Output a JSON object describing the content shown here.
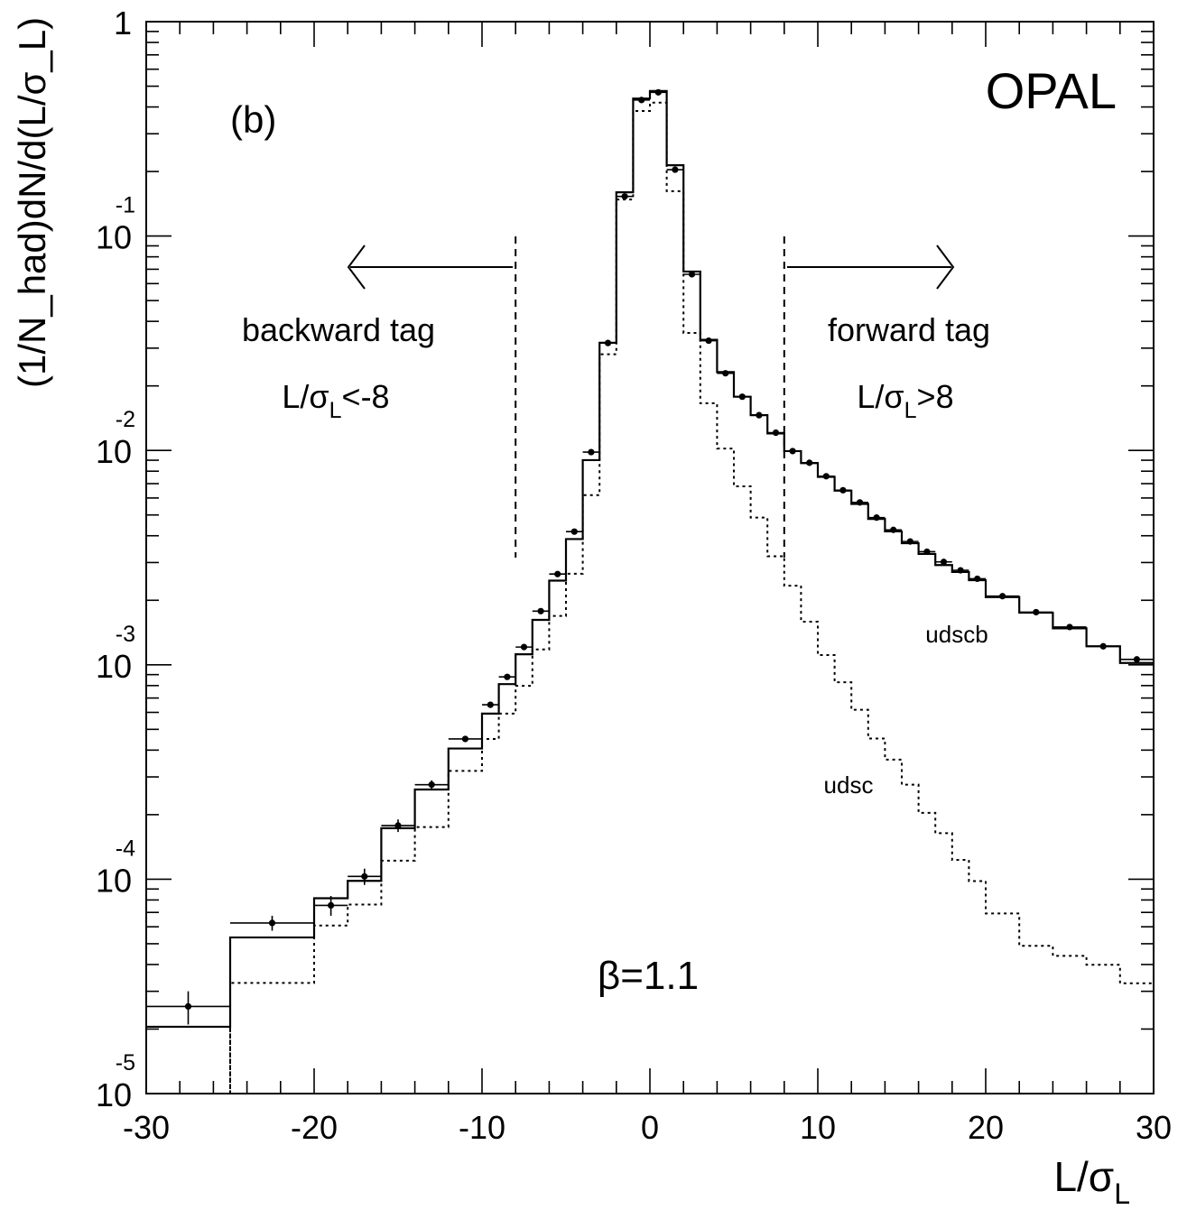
{
  "chart_data": {
    "type": "line",
    "panel_label": "(b)",
    "experiment": "OPAL",
    "xlabel": {
      "main": "L/σ",
      "sub": "L"
    },
    "ylabel": "(1/N_had)dN/d(L/σ_L)",
    "xlim": [
      -30,
      30
    ],
    "ylim": [
      1e-05,
      1
    ],
    "y_scale": "log",
    "grid": false,
    "x_ticks": [
      {
        "value": -30,
        "label": "-30"
      },
      {
        "value": -20,
        "label": "-20"
      },
      {
        "value": -10,
        "label": "-10"
      },
      {
        "value": 0,
        "label": "0"
      },
      {
        "value": 10,
        "label": "10"
      },
      {
        "value": 20,
        "label": "20"
      },
      {
        "value": 30,
        "label": "30"
      }
    ],
    "y_ticks": [
      {
        "value": 1,
        "base": "1",
        "exp": ""
      },
      {
        "value": 0.1,
        "base": "10",
        "exp": "-1"
      },
      {
        "value": 0.01,
        "base": "10",
        "exp": "-2"
      },
      {
        "value": 0.001,
        "base": "10",
        "exp": "-3"
      },
      {
        "value": 0.0001,
        "base": "10",
        "exp": "-4"
      },
      {
        "value": 1e-05,
        "base": "10",
        "exp": "-5"
      }
    ],
    "annotations": {
      "backward_tag": "backward tag",
      "backward_cut": {
        "main": "L/σ",
        "sub": "L",
        "rest": "<-8"
      },
      "forward_tag": "forward tag",
      "forward_cut": {
        "main": "L/σ",
        "sub": "L",
        "rest": ">8"
      },
      "beta": "β=1.1",
      "udscb_label": "udscb",
      "udsc_label": "udsc"
    },
    "cut_lines": [
      -8,
      8
    ],
    "data": [
      {
        "x": -27.5,
        "y": 2.55e-05,
        "xerr": 2.5,
        "yerr": 4.5e-06
      },
      {
        "x": -22.5,
        "y": 6.25e-05,
        "xerr": 2.5,
        "yerr": 5e-06
      },
      {
        "x": -19.0,
        "y": 7.55e-05,
        "xerr": 1.0,
        "yerr": 8e-06
      },
      {
        "x": -17.0,
        "y": 0.000103,
        "xerr": 1.0,
        "yerr": 9e-06
      },
      {
        "x": -15.0,
        "y": 0.000178,
        "xerr": 1.0,
        "yerr": 1.2e-05
      },
      {
        "x": -13.0,
        "y": 0.000276,
        "xerr": 1.0,
        "yerr": 1.3e-05
      },
      {
        "x": -11.0,
        "y": 0.000451,
        "xerr": 1.0,
        "yerr": 1.5e-05
      },
      {
        "x": -9.5,
        "y": 0.000651,
        "xerr": 0.5,
        "yerr": 2e-05
      },
      {
        "x": -8.5,
        "y": 0.000878,
        "xerr": 0.5,
        "yerr": 2.5e-05
      },
      {
        "x": -7.5,
        "y": 0.00121,
        "xerr": 0.5,
        "yerr": 3e-05
      },
      {
        "x": -6.5,
        "y": 0.00178,
        "xerr": 0.5,
        "yerr": 4e-05
      },
      {
        "x": -5.5,
        "y": 0.00265,
        "xerr": 0.5,
        "yerr": 5e-05
      },
      {
        "x": -4.5,
        "y": 0.00418,
        "xerr": 0.5,
        "yerr": 7e-05
      },
      {
        "x": -3.5,
        "y": 0.00982,
        "xerr": 0.5,
        "yerr": 0.0001
      },
      {
        "x": -2.5,
        "y": 0.0317,
        "xerr": 0.5,
        "yerr": 0.0003
      },
      {
        "x": -1.5,
        "y": 0.153,
        "xerr": 0.5,
        "yerr": 0.001
      },
      {
        "x": -0.5,
        "y": 0.431,
        "xerr": 0.5,
        "yerr": 0.002
      },
      {
        "x": 0.5,
        "y": 0.468,
        "xerr": 0.5,
        "yerr": 0.002
      },
      {
        "x": 1.5,
        "y": 0.204,
        "xerr": 0.5,
        "yerr": 0.001
      },
      {
        "x": 2.5,
        "y": 0.0663,
        "xerr": 0.5,
        "yerr": 0.0005
      },
      {
        "x": 3.5,
        "y": 0.0325,
        "xerr": 0.5,
        "yerr": 0.0003
      },
      {
        "x": 4.5,
        "y": 0.0229,
        "xerr": 0.5,
        "yerr": 0.0002
      },
      {
        "x": 5.5,
        "y": 0.0178,
        "xerr": 0.5,
        "yerr": 0.0002
      },
      {
        "x": 6.5,
        "y": 0.0146,
        "xerr": 0.5,
        "yerr": 0.00015
      },
      {
        "x": 7.5,
        "y": 0.0121,
        "xerr": 0.5,
        "yerr": 0.00012
      },
      {
        "x": 8.5,
        "y": 0.00993,
        "xerr": 0.5,
        "yerr": 0.0001
      },
      {
        "x": 9.5,
        "y": 0.00876,
        "xerr": 0.5,
        "yerr": 0.0001
      },
      {
        "x": 10.5,
        "y": 0.00758,
        "xerr": 0.5,
        "yerr": 9e-05
      },
      {
        "x": 11.5,
        "y": 0.00652,
        "xerr": 0.5,
        "yerr": 8e-05
      },
      {
        "x": 12.5,
        "y": 0.00572,
        "xerr": 0.5,
        "yerr": 7e-05
      },
      {
        "x": 13.5,
        "y": 0.00486,
        "xerr": 0.5,
        "yerr": 6e-05
      },
      {
        "x": 14.5,
        "y": 0.00426,
        "xerr": 0.5,
        "yerr": 6e-05
      },
      {
        "x": 15.5,
        "y": 0.00376,
        "xerr": 0.5,
        "yerr": 5e-05
      },
      {
        "x": 16.5,
        "y": 0.00337,
        "xerr": 0.5,
        "yerr": 5e-05
      },
      {
        "x": 17.5,
        "y": 0.00302,
        "xerr": 0.5,
        "yerr": 5e-05
      },
      {
        "x": 18.5,
        "y": 0.00276,
        "xerr": 0.5,
        "yerr": 4e-05
      },
      {
        "x": 19.5,
        "y": 0.00252,
        "xerr": 0.5,
        "yerr": 4e-05
      },
      {
        "x": 21.0,
        "y": 0.00209,
        "xerr": 1.0,
        "yerr": 3e-05
      },
      {
        "x": 23.0,
        "y": 0.00176,
        "xerr": 1.0,
        "yerr": 3e-05
      },
      {
        "x": 25.0,
        "y": 0.0015,
        "xerr": 1.0,
        "yerr": 3e-05
      },
      {
        "x": 27.0,
        "y": 0.00122,
        "xerr": 1.0,
        "yerr": 3e-05
      },
      {
        "x": 29.0,
        "y": 0.00106,
        "xerr": 1.0,
        "yerr": 3e-05
      }
    ],
    "series": [
      {
        "name": "udscb",
        "style": "solid",
        "edges": [
          -30,
          -25,
          -20,
          -18,
          -16,
          -14,
          -12,
          -10,
          -9,
          -8,
          -7,
          -6,
          -5,
          -4,
          -3,
          -2,
          -1,
          0,
          1,
          2,
          3,
          4,
          5,
          6,
          7,
          8,
          9,
          10,
          11,
          12,
          13,
          14,
          15,
          16,
          17,
          18,
          19,
          20,
          22,
          24,
          26,
          28,
          30
        ],
        "values": [
          2.05e-05,
          5.35e-05,
          8.15e-05,
          9.82e-05,
          0.000173,
          0.000262,
          0.000407,
          0.000592,
          0.000813,
          0.00112,
          0.00162,
          0.00247,
          0.00386,
          0.00901,
          0.0318,
          0.16,
          0.438,
          0.475,
          0.214,
          0.0683,
          0.0328,
          0.0232,
          0.0178,
          0.0146,
          0.012,
          0.00993,
          0.00873,
          0.00753,
          0.00649,
          0.00563,
          0.00479,
          0.00419,
          0.00369,
          0.00329,
          0.00292,
          0.00271,
          0.00248,
          0.00207,
          0.00175,
          0.00148,
          0.00122,
          0.00102
        ]
      },
      {
        "name": "udsc",
        "style": "dotted",
        "edges": [
          -30,
          -25,
          -20,
          -18,
          -16,
          -14,
          -12,
          -10,
          -9,
          -8,
          -7,
          -6,
          -5,
          -4,
          -3,
          -2,
          -1,
          0,
          1,
          2,
          3,
          4,
          5,
          6,
          7,
          8,
          9,
          10,
          11,
          12,
          13,
          14,
          15,
          16,
          17,
          18,
          19,
          20,
          22,
          24,
          26,
          28,
          30
        ],
        "values": [
          6.5e-06,
          3.28e-05,
          6.08e-05,
          7.62e-05,
          0.000122,
          0.000175,
          0.00032,
          0.000451,
          0.000592,
          0.000798,
          0.00118,
          0.00169,
          0.00266,
          0.00619,
          0.0281,
          0.148,
          0.383,
          0.419,
          0.162,
          0.0353,
          0.0166,
          0.0102,
          0.0068,
          0.00486,
          0.00321,
          0.00234,
          0.00159,
          0.00111,
          0.000829,
          0.000617,
          0.000453,
          0.000361,
          0.000276,
          0.000204,
          0.000164,
          0.000123,
          9.8e-05,
          6.92e-05,
          4.89e-05,
          4.39e-05,
          3.99e-05,
          3.27e-05
        ]
      }
    ]
  }
}
